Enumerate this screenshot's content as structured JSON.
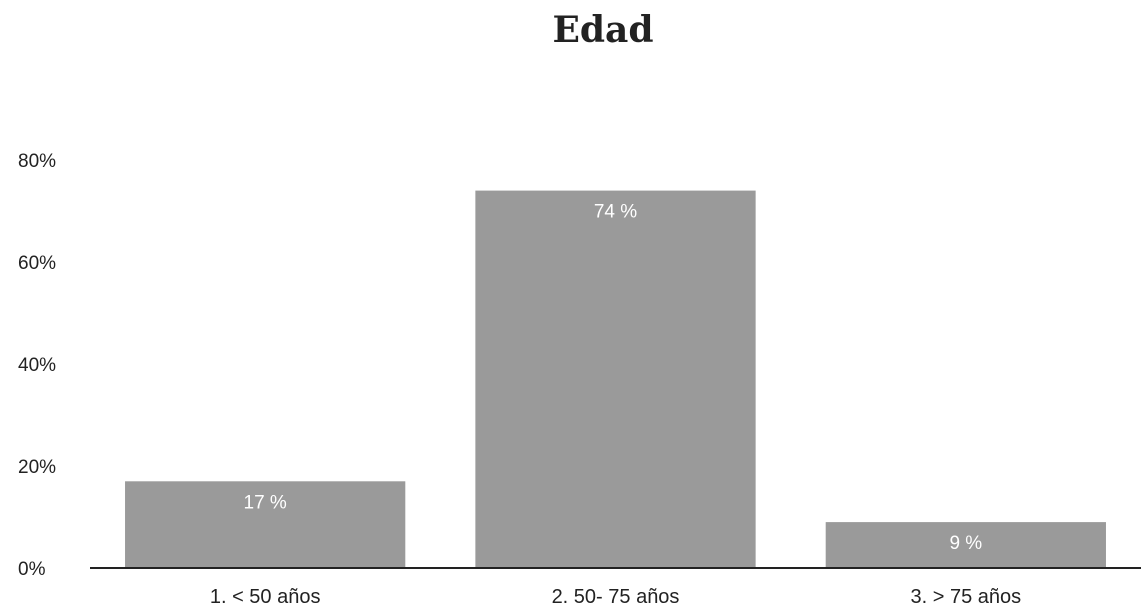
{
  "chart_data": {
    "type": "bar",
    "title": "Edad",
    "xlabel": "",
    "ylabel": "",
    "categories": [
      "1. < 50 años",
      "2. 50- 75 años",
      "3. > 75 años"
    ],
    "values": [
      17,
      74,
      9
    ],
    "data_labels": [
      "17 %",
      "74 %",
      "9 %"
    ],
    "yticks": [
      0,
      20,
      40,
      60,
      80
    ],
    "ytick_labels": [
      "0%",
      "20%",
      "40%",
      "60%",
      "80%"
    ],
    "ylim": [
      0,
      80
    ],
    "grid": false,
    "legend": "none",
    "bar_color": "#9a9a9a",
    "axis_color": "#222222"
  }
}
